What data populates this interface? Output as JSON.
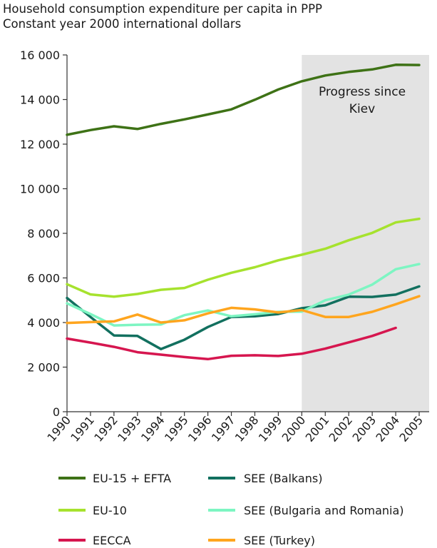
{
  "title": "Household consumption expenditure per capita in PPP",
  "subtitle": "Constant year 2000 international dollars",
  "chart_data": {
    "type": "line",
    "x": [
      "1990",
      "1991",
      "1992",
      "1993",
      "1994",
      "1995",
      "1996",
      "1997",
      "1998",
      "1999",
      "2000",
      "2001",
      "2002",
      "2003",
      "2004",
      "2005"
    ],
    "ylim": [
      0,
      16000
    ],
    "yticks": [
      0,
      2000,
      4000,
      6000,
      8000,
      10000,
      12000,
      14000,
      16000
    ],
    "ytick_labels": [
      "0",
      "2 000",
      "4 000",
      "6 000",
      "8 000",
      "10 000",
      "12 000",
      "14 000",
      "16 000"
    ],
    "grid": false,
    "legend_position": "bottom",
    "shaded_region": {
      "x_start": "2000",
      "x_end": "2005",
      "label_line1": "Progress since",
      "label_line2": "Kiev",
      "color": "#e3e3e3"
    },
    "series": [
      {
        "name": "EU-15 + EFTA",
        "color": "#3e7216",
        "values": [
          12420,
          12630,
          12800,
          12680,
          12910,
          13110,
          13330,
          13560,
          13990,
          14450,
          14820,
          15080,
          15240,
          15350,
          15560,
          15550
        ]
      },
      {
        "name": "EU-10",
        "color": "#a6e22e",
        "values": [
          5720,
          5260,
          5160,
          5280,
          5470,
          5550,
          5920,
          6230,
          6480,
          6790,
          7040,
          7310,
          7690,
          8020,
          8490,
          8650
        ]
      },
      {
        "name": "EECCA",
        "color": "#d6164f",
        "values": [
          3280,
          3100,
          2910,
          2670,
          2560,
          2450,
          2360,
          2510,
          2530,
          2500,
          2600,
          2830,
          3110,
          3400,
          3760,
          null
        ]
      },
      {
        "name": "SEE (Balkans)",
        "color": "#12705f",
        "values": [
          5100,
          4250,
          3420,
          3400,
          2810,
          3230,
          3800,
          4250,
          4280,
          4380,
          4640,
          4770,
          5160,
          5150,
          5250,
          5620
        ]
      },
      {
        "name": "SEE (Bulgaria and Romania)",
        "color": "#7df5c2",
        "values": [
          4860,
          4380,
          3870,
          3900,
          3910,
          4330,
          4540,
          4280,
          4370,
          4480,
          4490,
          5000,
          5250,
          5700,
          6390,
          6620
        ]
      },
      {
        "name": "SEE (Turkey)",
        "color": "#ffa51e",
        "values": [
          3980,
          4020,
          4050,
          4360,
          4000,
          4100,
          4410,
          4660,
          4590,
          4450,
          4560,
          4250,
          4250,
          4480,
          4820,
          5180
        ]
      }
    ]
  }
}
